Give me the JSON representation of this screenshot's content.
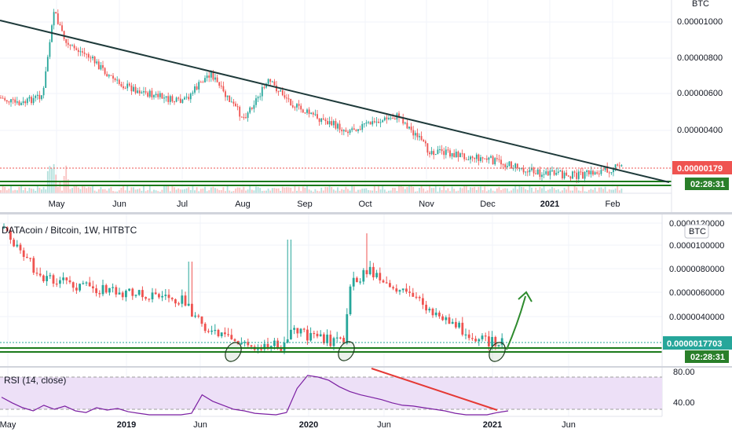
{
  "colors": {
    "up": "#26a69a",
    "down": "#ef5350",
    "trendline": "#1e3a3a",
    "support": "#1b7a1b",
    "rsi_line": "#7b1fa2",
    "rsi_band": "#ede0f7",
    "price_pill": "#ef5350",
    "price_pill_bottom": "#26a69a",
    "timer_pill": "#2a7f2a",
    "downtrend": "#e53935",
    "arrow": "#2e8b2e"
  },
  "top_chart": {
    "currency_label": "BTC",
    "last_price": "0.00000179",
    "timer": "02:28:31"
  },
  "bottom_chart": {
    "legend": "DATAcoin / Bitcoin, 1W, HITBTC",
    "currency_label": "BTC",
    "last_price": "0.0000017703",
    "timer": "02:28:31",
    "rsi_label": "RSI (14, close)"
  },
  "chart_data": [
    {
      "type": "candlestick",
      "title": "",
      "timeframe": "daily",
      "x_ticks": [
        "May",
        "Jun",
        "Jul",
        "Aug",
        "Sep",
        "Oct",
        "Nov",
        "Dec",
        "2021",
        "Feb"
      ],
      "y_ticks": [
        "0.00001000",
        "0.00000800",
        "0.00000600",
        "0.00000400"
      ],
      "ylim": [
        5e-07,
        1.15e-05
      ],
      "close_path": [
        {
          "x": "Apr",
          "y": 5.6e-06
        },
        {
          "x": "Apr late",
          "y": 5.2e-06
        },
        {
          "x": "May early",
          "y": 5.8e-06
        },
        {
          "x": "May peak",
          "y": 1.05e-05
        },
        {
          "x": "May",
          "y": 8.5e-06
        },
        {
          "x": "May late",
          "y": 8e-06
        },
        {
          "x": "Jun",
          "y": 6.4e-06
        },
        {
          "x": "Jun late",
          "y": 5.8e-06
        },
        {
          "x": "Jul",
          "y": 5.3e-06
        },
        {
          "x": "Jul mid",
          "y": 7e-06
        },
        {
          "x": "Jul late",
          "y": 5.8e-06
        },
        {
          "x": "Aug",
          "y": 4.5e-06
        },
        {
          "x": "Aug mid",
          "y": 6.5e-06
        },
        {
          "x": "Sep",
          "y": 5e-06
        },
        {
          "x": "Sep late",
          "y": 4.2e-06
        },
        {
          "x": "Oct",
          "y": 3.8e-06
        },
        {
          "x": "Oct late",
          "y": 4.6e-06
        },
        {
          "x": "Nov",
          "y": 2.7e-06
        },
        {
          "x": "Dec",
          "y": 2.2e-06
        },
        {
          "x": "Dec late",
          "y": 1.4e-06
        },
        {
          "x": "2021",
          "y": 1.3e-06
        },
        {
          "x": "Feb",
          "y": 1.8e-06
        }
      ],
      "last_value": 1.79e-06,
      "annotations": [
        "descending trendline",
        "horizontal support zone"
      ]
    },
    {
      "type": "candlestick",
      "title": "DATAcoin / Bitcoin, 1W, HITBTC",
      "timeframe": "1W",
      "x_ticks": [
        "May",
        "2019",
        "Jun",
        "2020",
        "Jun",
        "2021",
        "Jun"
      ],
      "y_ticks": [
        "0.0000120000",
        "0.0000100000",
        "0.0000080000",
        "0.0000060000",
        "0.0000040000"
      ],
      "ylim": [
        8e-07,
        1.2e-05
      ],
      "close_path": [
        {
          "x": "May 2018",
          "y": 1.15e-05
        },
        {
          "x": "Jul 2018",
          "y": 7.5e-06
        },
        {
          "x": "Oct 2018",
          "y": 6.5e-06
        },
        {
          "x": "2019",
          "y": 6e-06
        },
        {
          "x": "Apr 2019",
          "y": 5.5e-06
        },
        {
          "x": "Jun 2019",
          "y": 2.5e-06
        },
        {
          "x": "Aug 2019",
          "y": 1.4e-06
        },
        {
          "x": "Oct 2019",
          "y": 1.5e-06
        },
        {
          "x": "Nov 2019",
          "y": 2.8e-06
        },
        {
          "x": "Jan 2020",
          "y": 2e-06
        },
        {
          "x": "Mar 2020",
          "y": 1.7e-06
        },
        {
          "x": "Mar 2020 spike",
          "y": 6.5e-06
        },
        {
          "x": "Apr 2020",
          "y": 8e-06
        },
        {
          "x": "Jun 2020",
          "y": 7e-06
        },
        {
          "x": "Sep 2020",
          "y": 4.5e-06
        },
        {
          "x": "Dec 2020",
          "y": 2e-06
        },
        {
          "x": "2021",
          "y": 1.7703e-06
        }
      ],
      "last_value": 1.7703e-06,
      "annotations": [
        "support zone",
        "circled bounces (3)",
        "projected up arrow"
      ]
    },
    {
      "type": "line",
      "title": "RSI (14, close)",
      "x_ticks": [
        "May",
        "2019",
        "Jun",
        "2020",
        "Jun",
        "2021",
        "Jun"
      ],
      "y_ticks": [
        "80.00",
        "40.00"
      ],
      "ylim": [
        30,
        85
      ],
      "band": [
        30,
        70
      ],
      "values": [
        55,
        48,
        42,
        38,
        45,
        40,
        44,
        38,
        36,
        42,
        39,
        41,
        37,
        35,
        33,
        31,
        30,
        33,
        35,
        58,
        50,
        45,
        40,
        38,
        35,
        34,
        33,
        36,
        66,
        82,
        80,
        76,
        68,
        62,
        58,
        55,
        52,
        48,
        45,
        44,
        42,
        40,
        38,
        35,
        33,
        31,
        30,
        36,
        38
      ],
      "annotations": [
        "RSI downtrend line"
      ]
    }
  ]
}
